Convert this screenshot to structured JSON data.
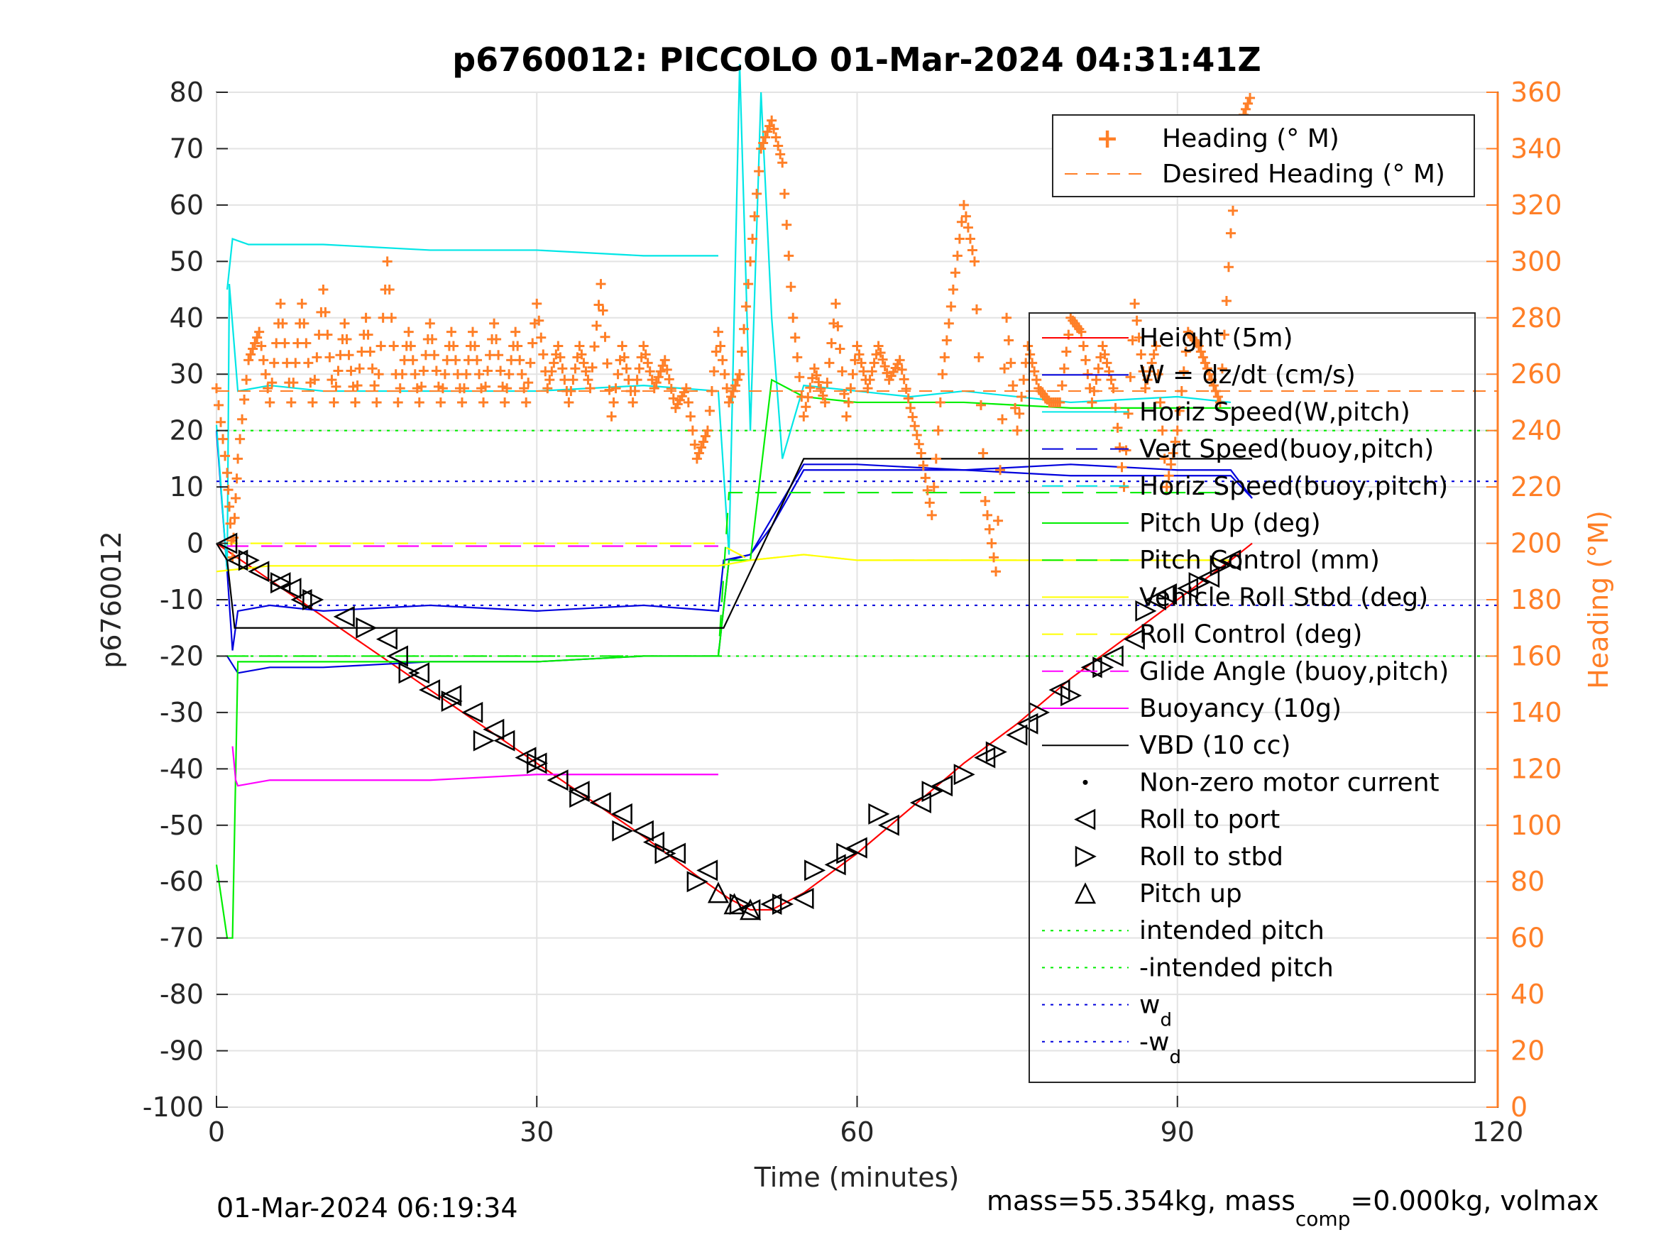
{
  "chart_data": {
    "type": "line",
    "title": "p6760012: PICCOLO 01-Mar-2024 04:31:41Z",
    "xlabel": "Time (minutes)",
    "ylabel": "p6760012",
    "y2label": "Heading (°M)",
    "xlim": [
      0,
      120
    ],
    "ylim": [
      -100,
      80
    ],
    "y2lim": [
      0,
      360
    ],
    "xticks": [
      "0",
      "30",
      "60",
      "90",
      "120"
    ],
    "yticks": [
      "80",
      "70",
      "60",
      "50",
      "40",
      "30",
      "20",
      "10",
      "0",
      "-10",
      "-20",
      "-30",
      "-40",
      "-50",
      "-60",
      "-70",
      "-80",
      "-90",
      "-100"
    ],
    "y2ticks": [
      "360",
      "340",
      "320",
      "300",
      "280",
      "260",
      "240",
      "220",
      "200",
      "180",
      "160",
      "140",
      "120",
      "100",
      "80",
      "60",
      "40",
      "20",
      "0"
    ],
    "grid": true,
    "legend_heading": {
      "placement": "top-right",
      "entries": [
        "Heading (° M)",
        "Desired Heading (° M)"
      ]
    },
    "legend_main": {
      "placement": "right",
      "entries": [
        "Height (5m)",
        "W = dz/dt (cm/s)",
        "Horiz Speed(W,pitch)",
        "Vert Speed(buoy,pitch)",
        "Horiz Speed(buoy,pitch)",
        "Pitch Up (deg)",
        "Pitch Control (mm)",
        "Vehicle Roll Stbd (deg)",
        "Roll Control (deg)",
        "Glide Angle (buoy,pitch)",
        "Buoyancy (10g)",
        "VBD (10 cc)",
        "Non-zero motor current",
        "Roll to port",
        "Roll to stbd",
        "Pitch up",
        "intended pitch",
        "-intended pitch",
        "w",
        "-w"
      ],
      "subscripts": {
        "w": "d",
        "-w": "d"
      }
    },
    "series": [
      {
        "name": "Height (5m)",
        "color": "#ff0000",
        "x": [
          0,
          10,
          20,
          30,
          40,
          45,
          48,
          50,
          52,
          55,
          60,
          65,
          70,
          75,
          80,
          85,
          90,
          95,
          97
        ],
        "y": [
          0,
          -13,
          -26,
          -39,
          -52,
          -59,
          -63,
          -65,
          -65,
          -62,
          -55,
          -47,
          -39,
          -32,
          -24,
          -17,
          -10,
          -3,
          0
        ]
      },
      {
        "name": "W = dz/dt (cm/s)",
        "color": "#0000dd",
        "x": [
          0,
          1,
          1.5,
          2,
          5,
          10,
          20,
          30,
          40,
          47,
          47.5,
          50,
          52,
          55,
          60,
          70,
          80,
          90,
          95,
          97
        ],
        "y": [
          20,
          -5,
          -19,
          -12,
          -11,
          -12,
          -11,
          -12,
          -11,
          -12,
          -3,
          -2,
          3,
          13,
          13,
          13,
          12,
          12,
          12,
          8
        ]
      },
      {
        "name": "Horiz Speed(W,pitch)",
        "color": "#00e6e6",
        "x": [
          0,
          1,
          1.2,
          2,
          5,
          10,
          20,
          30,
          40,
          47,
          48,
          49,
          50,
          51,
          52,
          53,
          55,
          60,
          65,
          70,
          80,
          90,
          95
        ],
        "y": [
          21,
          -5,
          46,
          27,
          28,
          27,
          27,
          27,
          28,
          27,
          -2,
          85,
          20,
          80,
          40,
          15,
          28,
          27,
          26,
          27,
          25,
          26,
          25
        ]
      },
      {
        "name": "Vert Speed(buoy,pitch)",
        "color": "#0000dd",
        "x": [
          1,
          2,
          5,
          10,
          20,
          30,
          40,
          47,
          48,
          50,
          55,
          60,
          70,
          80,
          90,
          95,
          97
        ],
        "y": [
          -20,
          -23,
          -22,
          -22,
          -21,
          -21,
          -20,
          -20,
          -3,
          -2,
          14,
          14,
          13,
          14,
          13,
          13,
          8
        ]
      },
      {
        "name": "Horiz Speed(buoy,pitch)",
        "color": "#00e6e6",
        "x": [
          1,
          1.5,
          3,
          10,
          20,
          30,
          40,
          47
        ],
        "y": [
          45,
          54,
          53,
          53,
          52,
          52,
          51,
          51
        ]
      },
      {
        "name": "Pitch Up (deg)",
        "color": "#00ee00",
        "x": [
          0,
          1,
          1.5,
          2,
          5,
          10,
          20,
          30,
          40,
          47,
          48,
          50,
          52,
          55,
          60,
          70,
          80,
          90,
          95
        ],
        "y": [
          -57,
          -70,
          -70,
          -21,
          -21,
          -21,
          -21,
          -21,
          -20,
          -20,
          -3,
          -3,
          29,
          26,
          25,
          25,
          24,
          24,
          24
        ]
      },
      {
        "name": "Pitch Control (mm)",
        "color": "#00ee00",
        "x": [
          1,
          47,
          48,
          55,
          56,
          95
        ],
        "y": [
          -20,
          -20,
          9,
          9,
          9,
          9
        ]
      },
      {
        "name": "Vehicle Roll Stbd (deg)",
        "color": "#ffff00",
        "x": [
          0,
          5,
          10,
          20,
          30,
          40,
          47,
          50,
          55,
          60,
          70,
          80,
          90,
          95
        ],
        "y": [
          -5,
          -4,
          -4,
          -4,
          -4,
          -4,
          -4,
          -3,
          -2,
          -3,
          -3,
          -3,
          -3,
          -3
        ]
      },
      {
        "name": "Roll Control (deg)",
        "color": "#ffff00",
        "x": [
          0,
          5,
          10,
          20,
          30,
          40,
          47,
          50,
          55,
          60,
          70,
          80,
          90,
          95
        ],
        "y": [
          0,
          0,
          0,
          0,
          0,
          0,
          0,
          -3,
          -2,
          -3,
          -3,
          -3,
          -3,
          -3
        ]
      },
      {
        "name": "Glide Angle (buoy,pitch)",
        "color": "#ff00ff",
        "x": [
          1,
          47
        ],
        "y": [
          -0.5,
          -0.5
        ]
      },
      {
        "name": "Buoyancy (10g)",
        "color": "#ff00ff",
        "x": [
          1.5,
          1.8,
          2,
          5,
          10,
          20,
          30,
          40,
          47
        ],
        "y": [
          -36,
          -42,
          -43,
          -42,
          -42,
          -42,
          -41,
          -41,
          -41
        ]
      },
      {
        "name": "VBD (10 cc)",
        "color": "#000000",
        "x": [
          0,
          1,
          1.7,
          2,
          47.5,
          55,
          56,
          97
        ],
        "y": [
          0,
          -3,
          -15,
          -15,
          -15,
          15,
          15,
          15
        ]
      },
      {
        "name": "intended pitch",
        "color": "#00ee00",
        "x": [
          0,
          120
        ],
        "y": [
          20,
          20
        ]
      },
      {
        "name": "-intended pitch",
        "color": "#00ee00",
        "x": [
          0,
          120
        ],
        "y": [
          -20,
          -20
        ]
      },
      {
        "name": "w_d",
        "color": "#0000dd",
        "x": [
          0,
          120
        ],
        "y": [
          11,
          11
        ]
      },
      {
        "name": "-w_d",
        "color": "#0000dd",
        "x": [
          0,
          120
        ],
        "y": [
          -11,
          -11
        ]
      }
    ],
    "heading": {
      "name": "Heading (° M)",
      "color": "#ff7f27",
      "x": [
        0,
        1,
        1.5,
        2,
        3,
        4,
        5,
        6,
        7,
        8,
        9,
        10,
        11,
        12,
        13,
        14,
        15,
        16,
        17,
        18,
        19,
        20,
        21,
        22,
        23,
        24,
        25,
        26,
        27,
        28,
        29,
        30,
        31,
        32,
        33,
        34,
        35,
        36,
        37,
        38,
        39,
        40,
        41,
        42,
        43,
        44,
        45,
        46,
        47,
        48,
        49,
        50,
        51,
        52,
        53,
        54,
        55,
        56,
        57,
        58,
        59,
        60,
        61,
        62,
        63,
        64,
        65,
        66,
        67,
        68,
        69,
        70,
        71,
        72,
        73,
        74,
        75,
        76,
        77,
        78,
        79,
        80,
        81,
        82,
        83,
        84,
        85,
        86,
        87,
        88,
        89,
        90,
        91,
        92,
        93,
        94,
        95,
        96,
        97
      ],
      "y": [
        255,
        225,
        195,
        230,
        265,
        275,
        250,
        285,
        250,
        285,
        250,
        290,
        250,
        278,
        250,
        280,
        250,
        300,
        250,
        275,
        250,
        278,
        250,
        275,
        250,
        275,
        250,
        278,
        250,
        275,
        250,
        285,
        255,
        270,
        250,
        270,
        255,
        292,
        245,
        270,
        250,
        270,
        255,
        265,
        248,
        255,
        230,
        240,
        275,
        250,
        260,
        300,
        340,
        350,
        335,
        280,
        245,
        262,
        250,
        285,
        245,
        270,
        255,
        270,
        258,
        265,
        248,
        232,
        210,
        260,
        290,
        320,
        300,
        215,
        190,
        280,
        240,
        270,
        255,
        250,
        250,
        280,
        275,
        250,
        270,
        255,
        220,
        285,
        255,
        270,
        220,
        240,
        275,
        270,
        260,
        250,
        310,
        350,
        360
      ]
    },
    "desired_heading": {
      "name": "Desired Heading (° M)",
      "color": "#ff7f27",
      "x": [
        0,
        47,
        48,
        120
      ],
      "y": [
        254,
        254,
        254,
        254
      ]
    },
    "markers": {
      "Roll to port": {
        "x": [
          1,
          2,
          4,
          6,
          7,
          8,
          12,
          16,
          17,
          19,
          20,
          22,
          24,
          26,
          27,
          29,
          30,
          32,
          34,
          36,
          38,
          40,
          41,
          43,
          46,
          50,
          52,
          55,
          58,
          60,
          63,
          66,
          68,
          72,
          75,
          76,
          79,
          82,
          84,
          86,
          88,
          89,
          91,
          93,
          95
        ],
        "y": [
          0,
          -3,
          -5,
          -7,
          -8,
          -10,
          -13,
          -17,
          -20,
          -23,
          -26,
          -27,
          -30,
          -33,
          -35,
          -38,
          -39,
          -42,
          -44,
          -46,
          -48,
          -51,
          -53,
          -55,
          -58,
          -65,
          -64,
          -63,
          -57,
          -54,
          -50,
          -46,
          -43,
          -38,
          -34,
          -32,
          -26,
          -22,
          -20,
          -17,
          -10,
          -9,
          -8,
          -6,
          -3
        ]
      },
      "Roll to stbd": {
        "x": [
          3,
          6,
          9,
          14,
          18,
          22,
          25,
          30,
          34,
          38,
          42,
          45,
          49,
          53,
          56,
          59,
          62,
          67,
          70,
          73,
          77,
          80,
          83,
          87,
          92,
          94
        ],
        "y": [
          -3,
          -7,
          -10,
          -15,
          -23,
          -28,
          -35,
          -39,
          -45,
          -51,
          -55,
          -60,
          -64,
          -64,
          -58,
          -55,
          -48,
          -44,
          -41,
          -37,
          -30,
          -27,
          -22,
          -12,
          -7,
          -4
        ]
      },
      "Pitch up": {
        "x": [
          47,
          48.5,
          50
        ],
        "y": [
          -62,
          -64,
          -65
        ]
      }
    },
    "footer_left": "01-Mar-2024 06:19:34",
    "footer_right": "mass=55.354kg, mass",
    "footer_right_sub": "comp",
    "footer_right_tail": "=0.000kg, volmax"
  }
}
